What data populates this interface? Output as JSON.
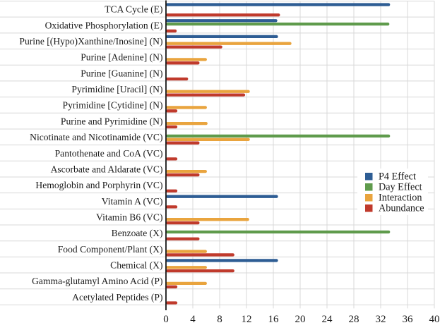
{
  "chart_data": {
    "type": "bar",
    "orientation": "horizontal",
    "title": "",
    "xlabel": "",
    "ylabel": "",
    "xlim": [
      0,
      40
    ],
    "x_ticks": [
      0,
      4,
      8,
      12,
      16,
      20,
      24,
      28,
      32,
      36,
      40
    ],
    "grid": true,
    "legend_position": "middle-right",
    "categories": [
      "TCA Cycle (E)",
      "Oxidative Phosphorylation (E)",
      "Purine [(Hypo)Xanthine/Inosine] (N)",
      "Purine [Adenine] (N)",
      "Purine [Guanine] (N)",
      "Pyrimidine [Uracil] (N)",
      "Pyrimidine [Cytidine] (N)",
      "Purine and Pyrimidine (N)",
      "Nicotinate and Nicotinamide (VC)",
      "Pantothenate and CoA (VC)",
      "Ascorbate and Aldarate (VC)",
      "Hemoglobin and Porphyrin (VC)",
      "Vitamin A (VC)",
      "Vitamin B6 (VC)",
      "Benzoate (X)",
      "Food Component/Plant (X)",
      "Chemical (X)",
      "Gamma-glutamyl Amino Acid (P)",
      "Acetylated Peptides (P)"
    ],
    "series": [
      {
        "name": "P4 Effect",
        "color": "#2e5d94",
        "values": [
          33.4,
          16.6,
          16.7,
          0,
          0,
          0,
          0,
          0,
          0,
          0,
          0,
          0,
          16.7,
          0,
          0,
          0,
          16.7,
          0,
          0
        ]
      },
      {
        "name": "Day Effect",
        "color": "#5f9b4c",
        "values": [
          0,
          33.3,
          0,
          0,
          0,
          0,
          0,
          0,
          33.4,
          0,
          0,
          0,
          0,
          0,
          33.4,
          0,
          0,
          0,
          0
        ]
      },
      {
        "name": "Interaction",
        "color": "#e9a43e",
        "values": [
          0,
          0,
          18.7,
          6.1,
          0,
          12.5,
          6.1,
          6.2,
          12.5,
          0,
          6.1,
          0,
          0,
          12.4,
          0,
          6.1,
          6.1,
          6.1,
          0
        ]
      },
      {
        "name": "Abundance",
        "color": "#c03a2c",
        "values": [
          17.0,
          1.6,
          8.4,
          5.0,
          3.3,
          11.8,
          1.7,
          1.7,
          5.0,
          1.7,
          5.0,
          1.7,
          1.7,
          5.0,
          5.0,
          10.2,
          10.2,
          1.7,
          1.7
        ]
      }
    ]
  },
  "legend": {
    "entries": [
      {
        "label": "P4 Effect",
        "color": "#2e5d94"
      },
      {
        "label": "Day Effect",
        "color": "#5f9b4c"
      },
      {
        "label": "Interaction",
        "color": "#e9a43e"
      },
      {
        "label": "Abundance",
        "color": "#c03a2c"
      }
    ]
  },
  "colors": {
    "gridline": "#d8d8d8",
    "axis": "#161616",
    "text": "#1c1c1c",
    "background": "#ffffff"
  }
}
